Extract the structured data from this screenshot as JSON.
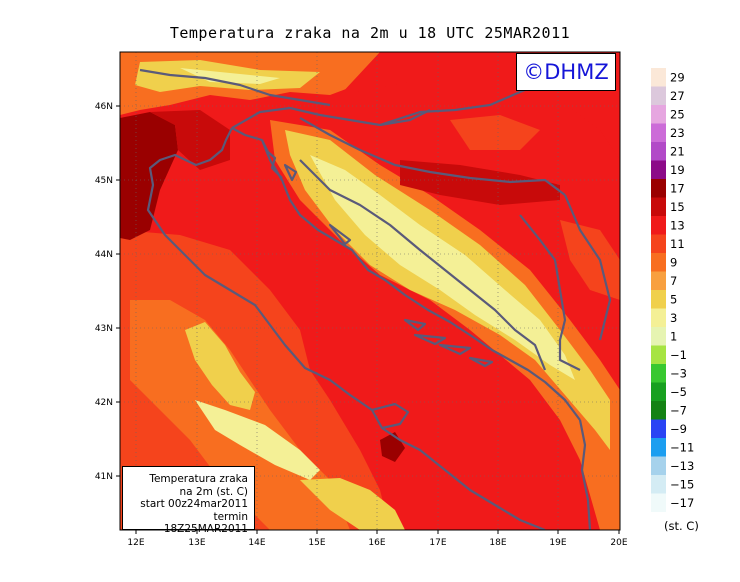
{
  "title": "Temperatura zraka na 2m u 18 UTC 25MAR2011",
  "logo": "©DHMZ",
  "info_box": {
    "line1": "Temperatura zraka",
    "line2": "na 2m (st. C)",
    "line3": "start 00z24mar2011",
    "line4": "termin 18Z25MAR2011"
  },
  "axes": {
    "lon_labels": [
      "12E",
      "13E",
      "14E",
      "15E",
      "16E",
      "17E",
      "18E",
      "19E",
      "20E"
    ],
    "lat_labels": [
      "46N",
      "45N",
      "44N",
      "43N",
      "42N",
      "41N"
    ]
  },
  "legend": {
    "unit": "(st. C)",
    "levels": [
      "29",
      "27",
      "25",
      "23",
      "21",
      "19",
      "17",
      "15",
      "13",
      "11",
      "9",
      "7",
      "5",
      "3",
      "1",
      "−1",
      "−3",
      "−5",
      "−7",
      "−9",
      "−11",
      "−13",
      "−15",
      "−17"
    ],
    "colors": [
      "#fbe8d8",
      "#dcc8dc",
      "#e6a6e0",
      "#cc6cd8",
      "#b24ac8",
      "#8c0a88",
      "#9a0000",
      "#c80a0a",
      "#f01a1a",
      "#f5441c",
      "#f86e20",
      "#f8a040",
      "#f0d04c",
      "#f4f096",
      "#e6f4b2",
      "#a6e442",
      "#38c830",
      "#18a020",
      "#148214",
      "#2a44f4",
      "#1c9ef0",
      "#a6d2ec",
      "#d4ecf4",
      "#f0fafa"
    ]
  }
}
